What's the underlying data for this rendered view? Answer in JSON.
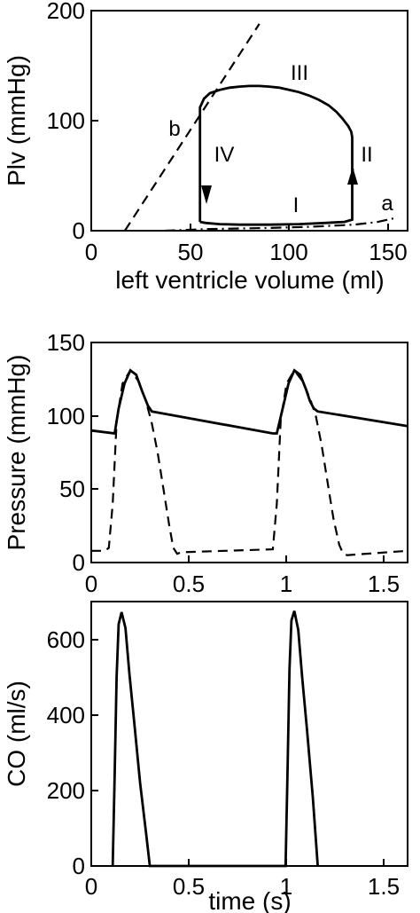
{
  "chart_data": [
    {
      "type": "line",
      "xlabel": "left ventricle volume (ml)",
      "ylabel": "Plv (mmHg)",
      "xlim": [
        0,
        160
      ],
      "ylim": [
        0,
        200
      ],
      "xticks": [
        0,
        50,
        100,
        150
      ],
      "yticks": [
        0,
        100,
        200
      ],
      "grid": false,
      "series": [
        {
          "name": "b",
          "style": "dashed",
          "x": [
            17,
            85
          ],
          "y": [
            0,
            188
          ]
        },
        {
          "name": "a",
          "style": "dash-dot",
          "x": [
            37,
            60,
            90,
            110,
            133,
            145,
            155
          ],
          "y": [
            0,
            1.5,
            2.5,
            3.5,
            5.5,
            8,
            12
          ]
        },
        {
          "name": "",
          "style": "solid",
          "x": [
            55,
            55,
            57,
            60,
            65,
            70,
            75,
            80,
            85,
            90,
            95,
            100,
            105,
            110,
            115,
            120,
            124,
            127,
            130,
            131.5,
            132,
            132,
            128,
            118,
            105,
            90,
            75,
            65,
            58,
            55
          ],
          "y": [
            8,
            112,
            120,
            125,
            128,
            130,
            131,
            131.5,
            131.5,
            131,
            130,
            128,
            126,
            123,
            119,
            114,
            108,
            102,
            95,
            90,
            85,
            10,
            8,
            7,
            6,
            5.5,
            5.5,
            6,
            7,
            8
          ]
        }
      ],
      "annotations": [
        "I",
        "II",
        "III",
        "IV",
        "a",
        "b"
      ]
    },
    {
      "type": "line",
      "xlabel": "",
      "ylabel": "Pressure (mmHg)",
      "xlim": [
        0,
        1.62
      ],
      "ylim": [
        0,
        150
      ],
      "xticks": [
        "0",
        "0.5",
        "1",
        "1.5"
      ],
      "yticks": [
        0,
        50,
        100,
        150
      ],
      "grid": false,
      "series": [
        {
          "name": "",
          "style": "solid",
          "x": [
            0,
            0.12,
            0.14,
            0.17,
            0.2,
            0.23,
            0.26,
            0.29,
            0.31,
            0.93,
            0.95,
            0.98,
            1.01,
            1.04,
            1.07,
            1.1,
            1.12,
            1.14,
            1.16,
            1.62
          ],
          "y": [
            90,
            88,
            105,
            122,
            131,
            128,
            117,
            107,
            103,
            88,
            88,
            105,
            122,
            131,
            128,
            118,
            110,
            105,
            103,
            93
          ]
        },
        {
          "name": "",
          "style": "dashed",
          "x": [
            0,
            0.07,
            0.09,
            0.11,
            0.13,
            0.16,
            0.2,
            0.24,
            0.28,
            0.31,
            0.34,
            0.37,
            0.4,
            0.42,
            0.44,
            0.46,
            0.93,
            0.95,
            0.97,
            1.0,
            1.04,
            1.08,
            1.12,
            1.15,
            1.18,
            1.21,
            1.24,
            1.27,
            1.29,
            1.31,
            1.62
          ],
          "y": [
            8,
            8,
            10,
            40,
            96,
            122,
            131,
            124,
            110,
            95,
            75,
            50,
            25,
            10,
            6,
            7,
            9,
            40,
            97,
            122,
            131,
            124,
            112,
            100,
            80,
            55,
            30,
            12,
            6,
            5,
            8
          ]
        }
      ]
    },
    {
      "type": "line",
      "xlabel": "time (s)",
      "ylabel": "CO (ml/s)",
      "xlim": [
        0,
        1.62
      ],
      "ylim": [
        0,
        700
      ],
      "xticks": [
        "0",
        "0.5",
        "1",
        "1.5"
      ],
      "yticks": [
        0,
        200,
        400,
        600
      ],
      "grid": false,
      "series": [
        {
          "name": "",
          "style": "solid",
          "x": [
            0.11,
            0.12,
            0.13,
            0.14,
            0.155,
            0.175,
            0.195,
            0.22,
            0.25,
            0.28,
            0.3,
            0.995,
            1.005,
            1.015,
            1.025,
            1.04,
            1.06,
            1.08,
            1.105,
            1.135,
            1.16
          ],
          "y": [
            0,
            240,
            500,
            640,
            672,
            630,
            510,
            380,
            220,
            90,
            0,
            0,
            250,
            520,
            650,
            675,
            625,
            500,
            360,
            180,
            0
          ]
        }
      ]
    }
  ]
}
